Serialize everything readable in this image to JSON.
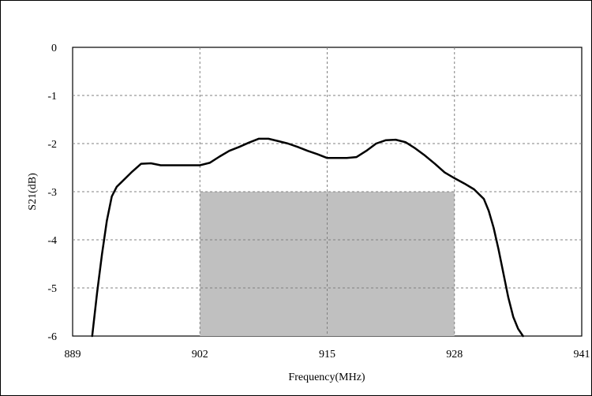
{
  "chart_data": {
    "type": "line",
    "title": "",
    "xlabel": "Frequency(MHz)",
    "ylabel": "S21(dB)",
    "xlim": [
      889,
      941
    ],
    "ylim": [
      -6,
      0
    ],
    "xticks": [
      889,
      902,
      915,
      928,
      941
    ],
    "yticks": [
      0,
      -1,
      -2,
      -3,
      -4,
      -5,
      -6
    ],
    "xtick_labels": [
      "889",
      "902",
      "915",
      "928",
      "941"
    ],
    "ytick_labels": [
      "0",
      "-1",
      "-2",
      "-3",
      "-4",
      "-5",
      "-6"
    ],
    "grid": true,
    "legend": "none",
    "colors": {
      "line": "#000000",
      "shaded_region": "#c0c0c0",
      "grid": "#808080"
    },
    "shaded_region": {
      "x": [
        902,
        928
      ],
      "y": [
        -6,
        -3
      ]
    },
    "series": [
      {
        "x": [
          891.0,
          891.5,
          892.0,
          892.5,
          893.0,
          893.5,
          894.0,
          895.0,
          896.0,
          897.0,
          898.0,
          899.0,
          900.0,
          901.0,
          902.0,
          903.0,
          904.0,
          905.0,
          906.0,
          907.0,
          908.0,
          909.0,
          910.0,
          911.0,
          912.0,
          913.0,
          914.0,
          915.0,
          916.0,
          917.0,
          918.0,
          919.0,
          920.0,
          921.0,
          922.0,
          923.0,
          924.0,
          925.0,
          926.0,
          927.0,
          928.0,
          929.0,
          930.0,
          931.0,
          931.5,
          932.0,
          932.5,
          933.0,
          933.5,
          934.0,
          934.5,
          935.0
        ],
        "y": [
          -6.0,
          -5.1,
          -4.3,
          -3.6,
          -3.1,
          -2.9,
          -2.8,
          -2.6,
          -2.42,
          -2.41,
          -2.45,
          -2.45,
          -2.45,
          -2.45,
          -2.45,
          -2.4,
          -2.27,
          -2.15,
          -2.07,
          -1.98,
          -1.9,
          -1.9,
          -1.95,
          -2.0,
          -2.07,
          -2.15,
          -2.22,
          -2.3,
          -2.3,
          -2.3,
          -2.28,
          -2.15,
          -2.0,
          -1.93,
          -1.92,
          -1.97,
          -2.1,
          -2.25,
          -2.42,
          -2.6,
          -2.72,
          -2.83,
          -2.95,
          -3.15,
          -3.4,
          -3.75,
          -4.2,
          -4.7,
          -5.2,
          -5.6,
          -5.85,
          -6.0
        ]
      }
    ]
  }
}
